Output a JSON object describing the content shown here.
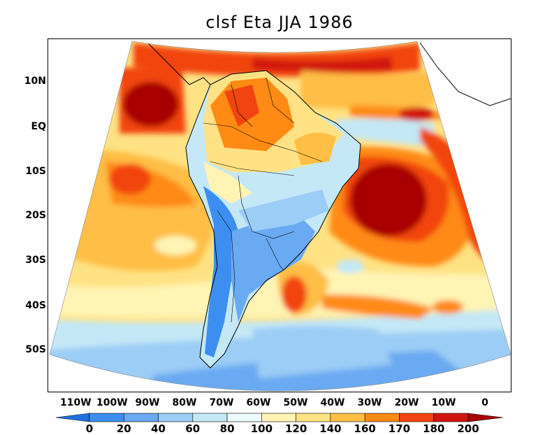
{
  "title": "clsf Eta JJA 1986",
  "lat_labels": [
    "10N",
    "EQ",
    "10S",
    "20S",
    "30S",
    "40S",
    "50S"
  ],
  "lon_labels": [
    "110W",
    "100W",
    "90W",
    "80W",
    "70W",
    "60W",
    "50W",
    "40W",
    "30W",
    "20W",
    "10W",
    "0"
  ],
  "colorbar": {
    "labels": [
      "0",
      "20",
      "40",
      "60",
      "80",
      "100",
      "120",
      "140",
      "160",
      "170",
      "180",
      "200"
    ],
    "colors": [
      "#1f6fe0",
      "#3c8ff0",
      "#6aaaf2",
      "#9ccdf6",
      "#c4e8f6",
      "#eefbfc",
      "#fff4b4",
      "#ffe284",
      "#ffbe44",
      "#ff8a14",
      "#f24410",
      "#d01510",
      "#a80505"
    ]
  }
}
